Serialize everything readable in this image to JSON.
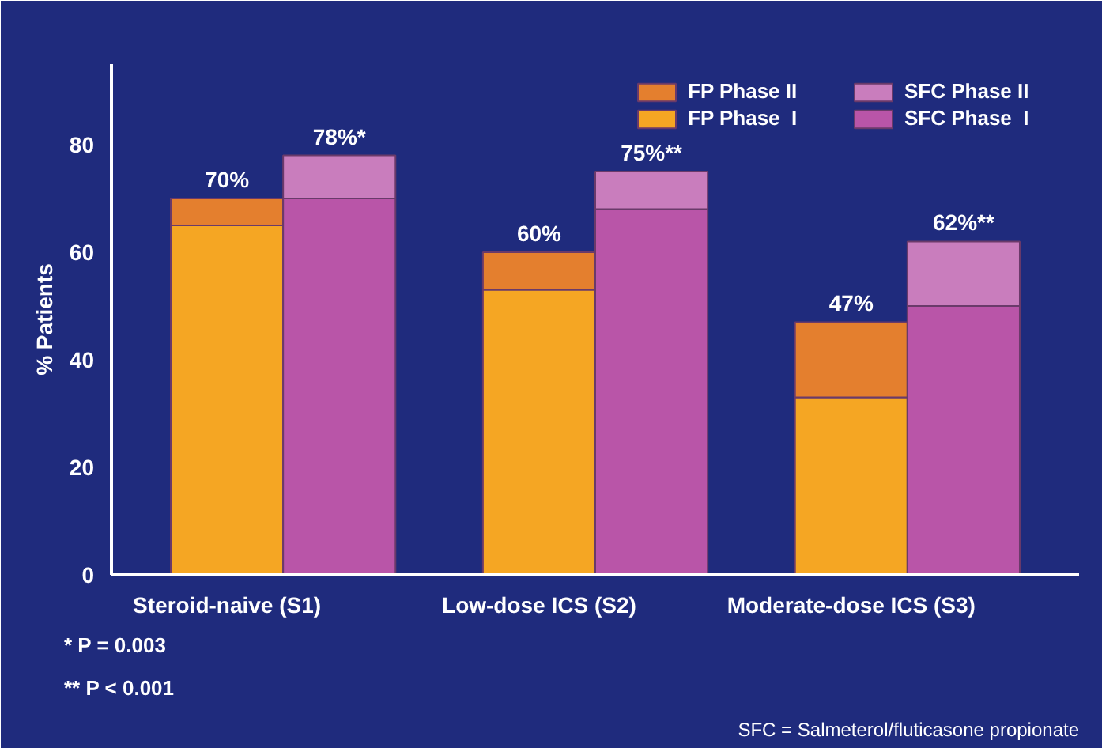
{
  "chart_data": {
    "type": "bar",
    "stacked": true,
    "ylabel": "% Patients",
    "categories": [
      "Steroid-naive (S1)",
      null,
      "Low-dose ICS (S2)",
      null,
      "Moderate-dose ICS (S3)",
      null
    ],
    "series": [
      {
        "name": "FP Phase  I",
        "color": "#f5a623",
        "values": [
          65,
          null,
          53,
          null,
          33,
          null
        ]
      },
      {
        "name": "FP Phase II",
        "color": "#e47f2e",
        "values": [
          5,
          null,
          7,
          null,
          14,
          null
        ]
      },
      {
        "name": "SFC Phase  I",
        "color": "#b955a8",
        "values": [
          null,
          70,
          null,
          68,
          null,
          50
        ]
      },
      {
        "name": "SFC Phase II",
        "color": "#c97dbd",
        "values": [
          null,
          8,
          null,
          7,
          null,
          12
        ]
      }
    ],
    "totals": [
      "70%",
      "78%*",
      "60%",
      "75%**",
      "47%",
      "62%**"
    ],
    "ylim": [
      0,
      95
    ],
    "yticks": [
      0,
      20,
      40,
      60,
      80
    ],
    "grid": false,
    "legend": "top right",
    "annotations": [
      "*  P = 0.003",
      "** P < 0.001",
      "SFC = Salmeterol/fluticasone propionate"
    ]
  }
}
